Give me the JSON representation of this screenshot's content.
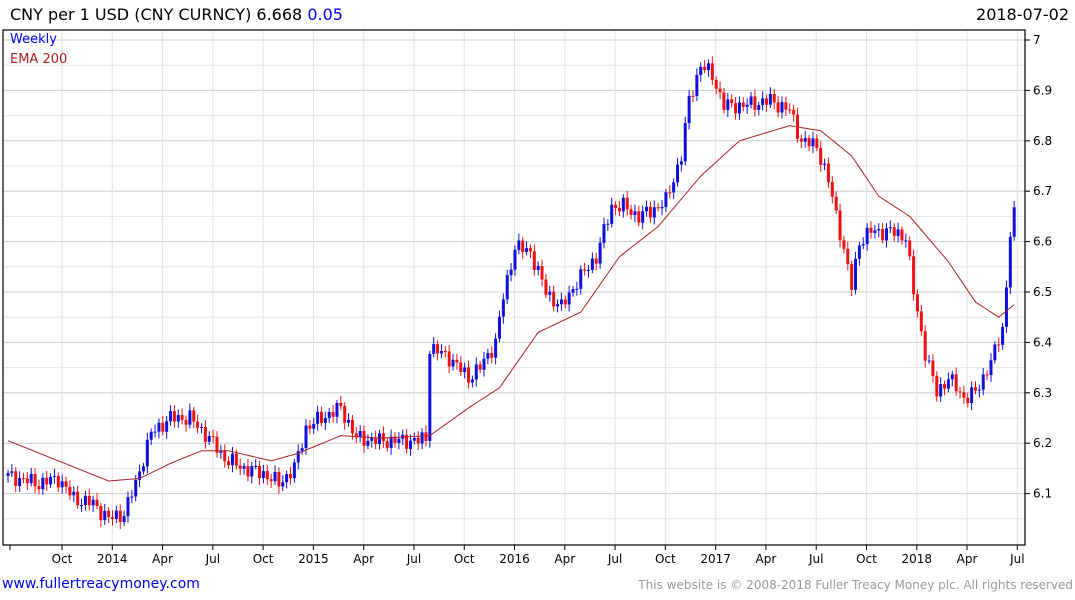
{
  "header": {
    "title": "CNY per 1 USD (CNY CURNCY) 6.668",
    "change": "0.05",
    "date": "2018-07-02"
  },
  "legend": {
    "period": "Weekly",
    "indicator": "EMA 200"
  },
  "footer": {
    "site": "www.fullertreacymoney.com",
    "copyright": "This website is © 2008-2018 Fuller Treacy Money plc. All rights reserved"
  },
  "colors": {
    "up": "#1010dd",
    "down": "#ee1111",
    "ema": "#aa2222"
  },
  "chart_data": {
    "type": "candlestick",
    "title": "CNY per 1 USD (CNY CURNCY)",
    "x_unit": "weeks since 2013-07-01",
    "ylim": [
      6.02,
      7.02
    ],
    "yticks": [
      "6.1",
      "6.2",
      "6.3",
      "6.4",
      "6.5",
      "6.6",
      "6.7",
      "6.8",
      "6.9",
      "7"
    ],
    "xticks": [
      "Oct",
      "2014",
      "Apr",
      "Jul",
      "Oct",
      "2015",
      "Apr",
      "Jul",
      "Oct",
      "2016",
      "Apr",
      "Jul",
      "Oct",
      "2017",
      "Apr",
      "Jul",
      "Oct",
      "2018",
      "Apr",
      "Jul"
    ],
    "close_keypoints": [
      [
        0,
        6.135
      ],
      [
        8,
        6.12
      ],
      [
        13,
        6.13
      ],
      [
        17,
        6.09
      ],
      [
        22,
        6.08
      ],
      [
        26,
        6.05
      ],
      [
        30,
        6.06
      ],
      [
        33,
        6.12
      ],
      [
        37,
        6.22
      ],
      [
        42,
        6.25
      ],
      [
        47,
        6.25
      ],
      [
        52,
        6.21
      ],
      [
        56,
        6.17
      ],
      [
        61,
        6.15
      ],
      [
        66,
        6.14
      ],
      [
        70,
        6.12
      ],
      [
        74,
        6.15
      ],
      [
        77,
        6.23
      ],
      [
        81,
        6.25
      ],
      [
        86,
        6.27
      ],
      [
        90,
        6.21
      ],
      [
        96,
        6.205
      ],
      [
        106,
        6.205
      ],
      [
        108,
        6.21
      ],
      [
        109,
        6.39
      ],
      [
        114,
        6.37
      ],
      [
        119,
        6.33
      ],
      [
        122,
        6.35
      ],
      [
        126,
        6.4
      ],
      [
        128,
        6.49
      ],
      [
        131,
        6.59
      ],
      [
        135,
        6.58
      ],
      [
        139,
        6.5
      ],
      [
        143,
        6.47
      ],
      [
        147,
        6.52
      ],
      [
        152,
        6.57
      ],
      [
        156,
        6.67
      ],
      [
        159,
        6.67
      ],
      [
        163,
        6.65
      ],
      [
        166,
        6.66
      ],
      [
        170,
        6.68
      ],
      [
        174,
        6.77
      ],
      [
        176,
        6.88
      ],
      [
        179,
        6.95
      ],
      [
        182,
        6.93
      ],
      [
        185,
        6.87
      ],
      [
        190,
        6.87
      ],
      [
        197,
        6.88
      ],
      [
        202,
        6.86
      ],
      [
        205,
        6.8
      ],
      [
        209,
        6.79
      ],
      [
        212,
        6.72
      ],
      [
        215,
        6.62
      ],
      [
        218,
        6.51
      ],
      [
        220,
        6.6
      ],
      [
        223,
        6.62
      ],
      [
        228,
        6.62
      ],
      [
        232,
        6.61
      ],
      [
        234,
        6.5
      ],
      [
        237,
        6.38
      ],
      [
        240,
        6.3
      ],
      [
        243,
        6.33
      ],
      [
        247,
        6.29
      ],
      [
        250,
        6.3
      ],
      [
        252,
        6.33
      ],
      [
        255,
        6.38
      ],
      [
        257,
        6.43
      ],
      [
        258,
        6.51
      ],
      [
        259,
        6.62
      ],
      [
        260,
        6.668
      ]
    ],
    "ema200": [
      [
        0,
        6.205
      ],
      [
        13,
        6.165
      ],
      [
        26,
        6.125
      ],
      [
        34,
        6.13
      ],
      [
        42,
        6.16
      ],
      [
        50,
        6.185
      ],
      [
        57,
        6.185
      ],
      [
        68,
        6.165
      ],
      [
        75,
        6.18
      ],
      [
        86,
        6.215
      ],
      [
        96,
        6.21
      ],
      [
        109,
        6.215
      ],
      [
        119,
        6.27
      ],
      [
        127,
        6.31
      ],
      [
        137,
        6.42
      ],
      [
        148,
        6.46
      ],
      [
        158,
        6.57
      ],
      [
        168,
        6.63
      ],
      [
        179,
        6.73
      ],
      [
        189,
        6.8
      ],
      [
        202,
        6.83
      ],
      [
        210,
        6.82
      ],
      [
        218,
        6.77
      ],
      [
        225,
        6.69
      ],
      [
        233,
        6.65
      ],
      [
        243,
        6.56
      ],
      [
        250,
        6.48
      ],
      [
        256,
        6.45
      ],
      [
        260,
        6.475
      ]
    ],
    "last": 6.668,
    "change": 0.05
  }
}
